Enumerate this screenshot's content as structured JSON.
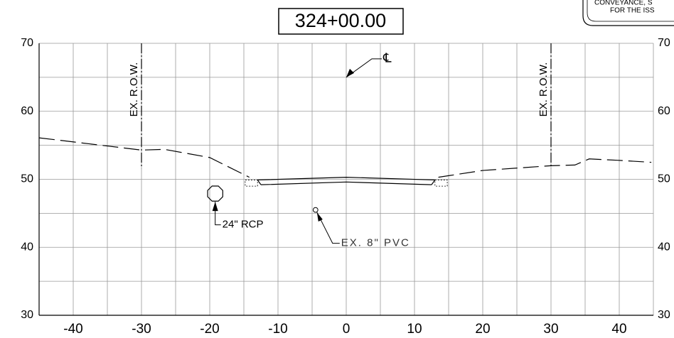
{
  "chart_data": {
    "type": "line",
    "title": "324+00.00",
    "corner_note": [
      "CONVEYANCE, S",
      "FOR THE ISS"
    ],
    "xlim": [
      -45,
      45
    ],
    "ylim": [
      30,
      70
    ],
    "xticks": [
      -40,
      -30,
      -20,
      -10,
      0,
      10,
      20,
      30,
      40
    ],
    "yticks": [
      30,
      40,
      50,
      60,
      70
    ],
    "xgrid": [
      -45,
      -35,
      -25,
      -15,
      -5,
      5,
      15,
      25,
      35,
      45
    ],
    "ygrid": [
      35,
      45,
      55,
      65
    ],
    "grid": true,
    "series": [
      {
        "name": "existing ground",
        "color": "#000",
        "dashed": true,
        "x": [
          -45,
          -30,
          -26.6,
          -20,
          -14.2,
          null,
          13.5,
          20,
          30,
          33.5,
          35.6,
          39.7,
          44.7
        ],
        "values": [
          56.1,
          54.3,
          54.4,
          53.2,
          50.3,
          null,
          50.3,
          51.3,
          52.0,
          52.1,
          53.0,
          52.8,
          52.5
        ]
      },
      {
        "name": "pavement top",
        "color": "#000",
        "dashed": false,
        "x": [
          -13,
          0,
          13
        ],
        "values": [
          49.9,
          50.3,
          49.9
        ]
      },
      {
        "name": "pavement bottom",
        "color": "#000",
        "dashed": false,
        "x": [
          -12.5,
          0,
          12.5
        ],
        "values": [
          49.2,
          49.6,
          49.2
        ]
      }
    ],
    "row_lines": [
      {
        "label": "EX. R.O.W.",
        "x": -30,
        "y_bottom": 51.6
      },
      {
        "label": "EX. R.O.W.",
        "x": 30,
        "y_bottom": 51.6
      }
    ],
    "centerline": {
      "label": "℄",
      "x": 0,
      "y": 65
    },
    "pipes": [
      {
        "label": "24\" RCP",
        "x": -19.2,
        "y": 47.9,
        "radius": 1.2
      },
      {
        "label": "EX. 8\" PVC",
        "x": -4.5,
        "y": 45.5,
        "radius": 0.35
      }
    ]
  }
}
